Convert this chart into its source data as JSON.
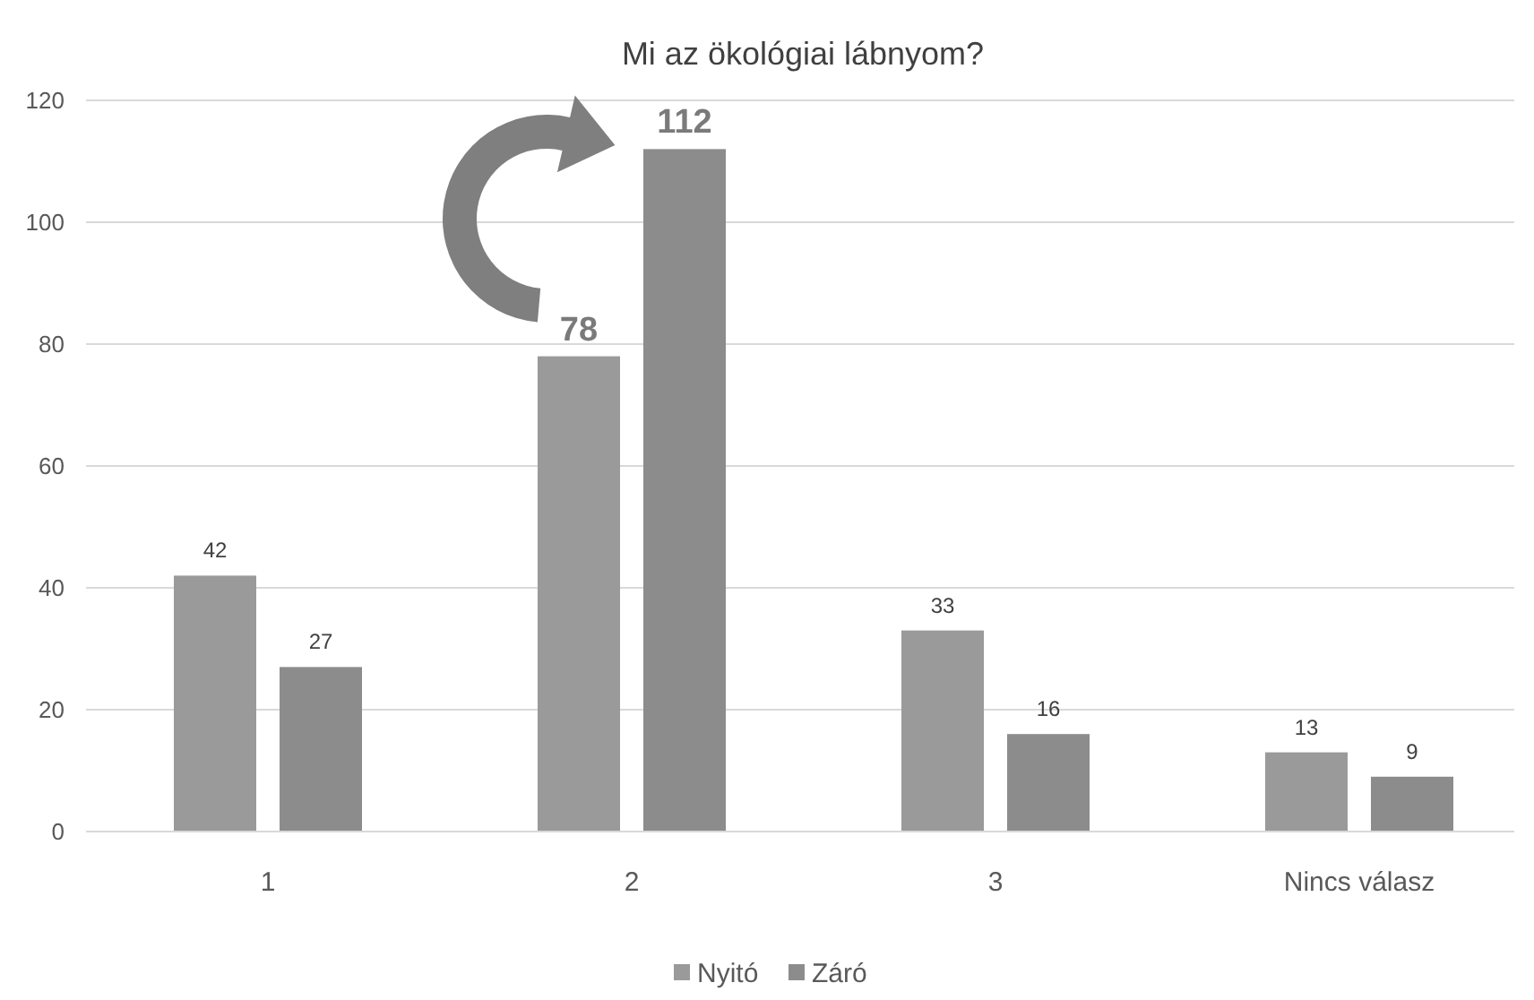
{
  "chart_data": {
    "type": "bar",
    "title": "Mi az ökológiai lábnyom?",
    "categories": [
      "1",
      "2",
      "3",
      "Nincs válasz"
    ],
    "series": [
      {
        "name": "Nyitó",
        "color": "#9a9a9a",
        "values": [
          42,
          78,
          33,
          13
        ]
      },
      {
        "name": "Záró",
        "color": "#8c8c8c",
        "values": [
          27,
          112,
          16,
          9
        ]
      }
    ],
    "ylim": [
      0,
      120
    ],
    "yticks": [
      0,
      20,
      40,
      60,
      80,
      100,
      120
    ],
    "grid": "y",
    "legend": "bottom",
    "data_labels": true
  }
}
